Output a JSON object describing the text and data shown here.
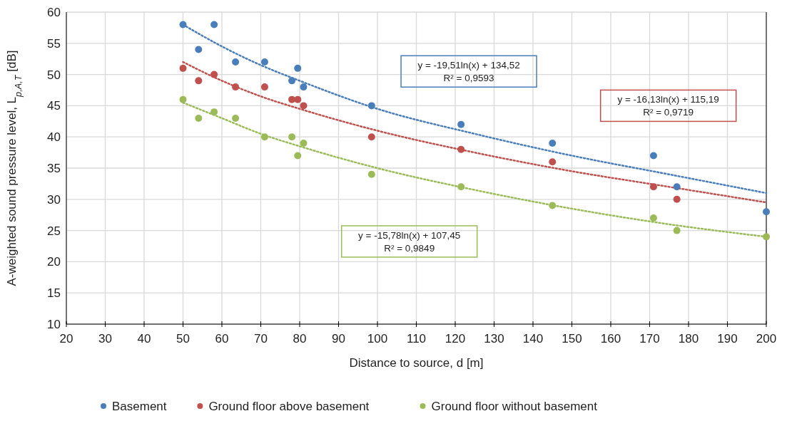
{
  "chart_data": {
    "type": "scatter",
    "xlabel": "Distance to source, d [m]",
    "ylabel": "A-weighted sound pressure level, L$_{p,A,T}$ [dB]",
    "x": [
      50,
      54,
      58,
      63.5,
      71,
      78,
      79.5,
      81,
      98.5,
      121.5,
      145,
      171,
      177,
      200
    ],
    "series": [
      {
        "name": "Basement",
        "color": "#4a7ebb",
        "values": [
          58,
          54,
          58,
          52,
          52,
          49,
          51,
          48,
          45,
          42,
          39,
          37,
          32,
          28
        ]
      },
      {
        "name": "Ground floor above basement",
        "color": "#c0504d",
        "values": [
          51,
          49,
          50,
          48,
          48,
          46,
          46,
          45,
          40,
          38,
          36,
          32,
          30,
          null
        ]
      },
      {
        "name": "Ground floor without basement",
        "color": "#9bbb59",
        "values": [
          46,
          43,
          44,
          43,
          40,
          40,
          37,
          39,
          34,
          32,
          29,
          27,
          25,
          24
        ]
      },
      {
        "type": "line",
        "color": "#4a7ebb",
        "x": [
          50,
          60,
          70,
          80,
          100,
          125,
          150,
          175,
          200
        ],
        "values": [
          58,
          54.5,
          51.5,
          49,
          44.5,
          40.5,
          37,
          34,
          31
        ],
        "line_style": "dotted",
        "marker": "none"
      },
      {
        "type": "line",
        "color": "#c0504d",
        "x": [
          50,
          60,
          70,
          80,
          100,
          125,
          150,
          175,
          200
        ],
        "values": [
          52,
          49,
          46.5,
          44.5,
          41,
          37.5,
          34.5,
          32,
          29.5
        ],
        "line_style": "dotted",
        "marker": "none"
      },
      {
        "type": "line",
        "color": "#9bbb59",
        "x": [
          50,
          60,
          70,
          80,
          100,
          125,
          150,
          175,
          200
        ],
        "values": [
          45.5,
          43,
          40.5,
          38.5,
          35,
          31.5,
          28.5,
          26,
          24
        ],
        "line_style": "dotted",
        "marker": "none"
      }
    ],
    "annotations": [
      "y = -19,51ln(x) + 134,52\nR² = 0,9593",
      "y = -16,13ln(x) + 115,19\nR² = 0,9719",
      "y = -15,78ln(x) + 107,45\nR² = 0,9849"
    ],
    "xlim": [
      20,
      200
    ],
    "xticks": [
      20,
      30,
      40,
      50,
      60,
      70,
      80,
      90,
      100,
      110,
      120,
      130,
      140,
      150,
      160,
      170,
      180,
      190,
      200
    ],
    "ylim": [
      10,
      60
    ],
    "yticks": [
      10,
      15,
      20,
      25,
      30,
      35,
      40,
      45,
      50,
      55,
      60
    ],
    "grid": true,
    "legend": "bottom",
    "marker": "circle"
  }
}
